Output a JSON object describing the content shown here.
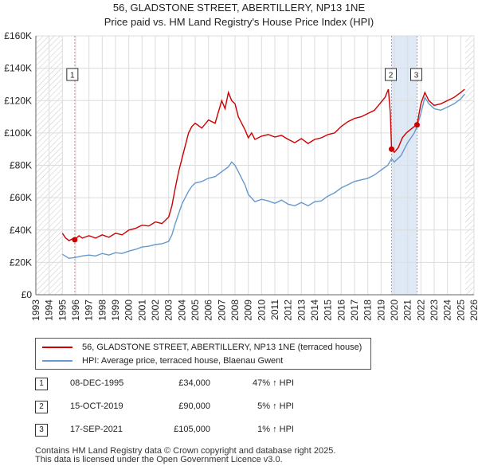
{
  "title_line1": "56, GLADSTONE STREET, ABERTILLERY, NP13 1NE",
  "title_line2": "Price paid vs. HM Land Registry's House Price Index (HPI)",
  "colors": {
    "property": "#cc0000",
    "hpi": "#6699cc",
    "shade": "#dfe8f5",
    "marker_vline": "#dd8888"
  },
  "legend": {
    "property": "56, GLADSTONE STREET, ABERTILLERY, NP13 1NE (terraced house)",
    "hpi": "HPI: Average price, terraced house, Blaenau Gwent"
  },
  "sales": [
    {
      "num": "1",
      "date": "08-DEC-1995",
      "price": "£34,000",
      "hpi": "47% ↑ HPI"
    },
    {
      "num": "2",
      "date": "15-OCT-2019",
      "price": "£90,000",
      "hpi": "5% ↑ HPI"
    },
    {
      "num": "3",
      "date": "17-SEP-2021",
      "price": "£105,000",
      "hpi": "1% ↑ HPI"
    }
  ],
  "footer_line1": "Contains HM Land Registry data © Crown copyright and database right 2025.",
  "footer_line2": "This data is licensed under the Open Government Licence v3.0.",
  "chart_data": {
    "type": "line",
    "title": "56, GLADSTONE STREET, ABERTILLERY, NP13 1NE",
    "subtitle": "Price paid vs. HM Land Registry's House Price Index (HPI)",
    "xlim": [
      1993,
      2026
    ],
    "ylim": [
      0,
      160000
    ],
    "x_ticks": [
      1993,
      1994,
      1995,
      1996,
      1997,
      1998,
      1999,
      2000,
      2001,
      2002,
      2003,
      2004,
      2005,
      2006,
      2007,
      2008,
      2009,
      2010,
      2011,
      2012,
      2013,
      2014,
      2015,
      2016,
      2017,
      2018,
      2019,
      2020,
      2021,
      2022,
      2023,
      2024,
      2025,
      2026
    ],
    "y_ticks": [
      0,
      20000,
      40000,
      60000,
      80000,
      100000,
      120000,
      140000,
      160000
    ],
    "y_tick_labels": [
      "£0",
      "£20K",
      "£40K",
      "£60K",
      "£80K",
      "£100K",
      "£120K",
      "£140K",
      "£160K"
    ],
    "grid": true,
    "hatched_ranges": [
      [
        1993,
        1995
      ],
      [
        2025.33,
        2026
      ]
    ],
    "series": [
      {
        "name": "56, GLADSTONE STREET, ABERTILLERY, NP13 1NE (terraced house)",
        "x": [
          1995.0,
          1995.25,
          1995.5,
          1995.75,
          1995.93,
          1996.25,
          1996.5,
          1997.0,
          1997.5,
          1998.0,
          1998.5,
          1999.0,
          1999.5,
          2000.0,
          2000.5,
          2001.0,
          2001.5,
          2002.0,
          2002.5,
          2003.0,
          2003.25,
          2003.5,
          2003.75,
          2004.0,
          2004.25,
          2004.5,
          2004.75,
          2005.0,
          2005.5,
          2006.0,
          2006.5,
          2007.0,
          2007.25,
          2007.5,
          2007.75,
          2008.0,
          2008.25,
          2008.5,
          2008.75,
          2009.0,
          2009.25,
          2009.5,
          2010.0,
          2010.5,
          2011.0,
          2011.5,
          2012.0,
          2012.5,
          2013.0,
          2013.5,
          2014.0,
          2014.5,
          2015.0,
          2015.5,
          2016.0,
          2016.5,
          2017.0,
          2017.5,
          2018.0,
          2018.5,
          2019.0,
          2019.3,
          2019.55,
          2019.7,
          2019.79,
          2020.0,
          2020.3,
          2020.6,
          2020.9,
          2021.2,
          2021.5,
          2021.71,
          2022.0,
          2022.3,
          2022.6,
          2023.0,
          2023.5,
          2024.0,
          2024.5,
          2025.0,
          2025.3
        ],
        "values": [
          38000,
          35000,
          33500,
          34500,
          34000,
          36500,
          35000,
          36500,
          35000,
          37000,
          35500,
          38000,
          37000,
          40000,
          41000,
          43000,
          42500,
          45000,
          44000,
          48000,
          55000,
          66000,
          76000,
          84000,
          92000,
          100000,
          104000,
          106000,
          103000,
          108000,
          106000,
          120000,
          115000,
          125000,
          120000,
          118000,
          110000,
          106000,
          102000,
          97000,
          100000,
          96000,
          98000,
          99000,
          97500,
          98500,
          96000,
          94000,
          96500,
          93500,
          96000,
          97000,
          99000,
          100000,
          104000,
          107000,
          109000,
          110000,
          112000,
          114000,
          119000,
          122000,
          127000,
          112000,
          90000,
          88000,
          91000,
          97000,
          100000,
          102000,
          104000,
          105000,
          118000,
          125000,
          120000,
          117000,
          118000,
          120000,
          122000,
          125000,
          127000
        ]
      },
      {
        "name": "HPI: Average price, terraced house, Blaenau Gwent",
        "x": [
          1995.0,
          1995.5,
          1995.93,
          1996.5,
          1997.0,
          1997.5,
          1998.0,
          1998.5,
          1999.0,
          1999.5,
          2000.0,
          2000.5,
          2001.0,
          2001.5,
          2002.0,
          2002.5,
          2003.0,
          2003.25,
          2003.5,
          2003.75,
          2004.0,
          2004.25,
          2004.5,
          2004.75,
          2005.0,
          2005.5,
          2006.0,
          2006.5,
          2007.0,
          2007.5,
          2007.75,
          2008.0,
          2008.25,
          2008.5,
          2008.75,
          2009.0,
          2009.5,
          2010.0,
          2010.5,
          2011.0,
          2011.5,
          2012.0,
          2012.5,
          2013.0,
          2013.5,
          2014.0,
          2014.5,
          2015.0,
          2015.5,
          2016.0,
          2016.5,
          2017.0,
          2017.5,
          2018.0,
          2018.5,
          2019.0,
          2019.5,
          2019.79,
          2020.0,
          2020.5,
          2021.0,
          2021.5,
          2021.71,
          2022.0,
          2022.3,
          2022.6,
          2023.0,
          2023.5,
          2024.0,
          2024.5,
          2025.0,
          2025.3
        ],
        "values": [
          25000,
          22500,
          23000,
          24000,
          24500,
          24000,
          25500,
          24500,
          26000,
          25500,
          27000,
          28000,
          29500,
          30000,
          31000,
          31500,
          33000,
          37000,
          44000,
          50000,
          56000,
          60000,
          64000,
          67000,
          69000,
          70000,
          72000,
          73000,
          76000,
          79000,
          82000,
          80000,
          76000,
          72000,
          68000,
          62000,
          57500,
          59000,
          58000,
          56500,
          58500,
          56000,
          55000,
          57000,
          55000,
          57500,
          58000,
          61000,
          63000,
          66000,
          68000,
          70000,
          71000,
          72000,
          74000,
          77000,
          80000,
          84000,
          82000,
          86000,
          94000,
          100000,
          104000,
          112000,
          122000,
          118000,
          115000,
          114000,
          116000,
          118000,
          121000,
          124000
        ]
      }
    ],
    "sale_markers": [
      {
        "label": "1",
        "x": 1995.93,
        "value": 34000
      },
      {
        "label": "2",
        "x": 2019.79,
        "value": 90000
      },
      {
        "label": "3",
        "x": 2021.71,
        "value": 105000
      }
    ]
  }
}
